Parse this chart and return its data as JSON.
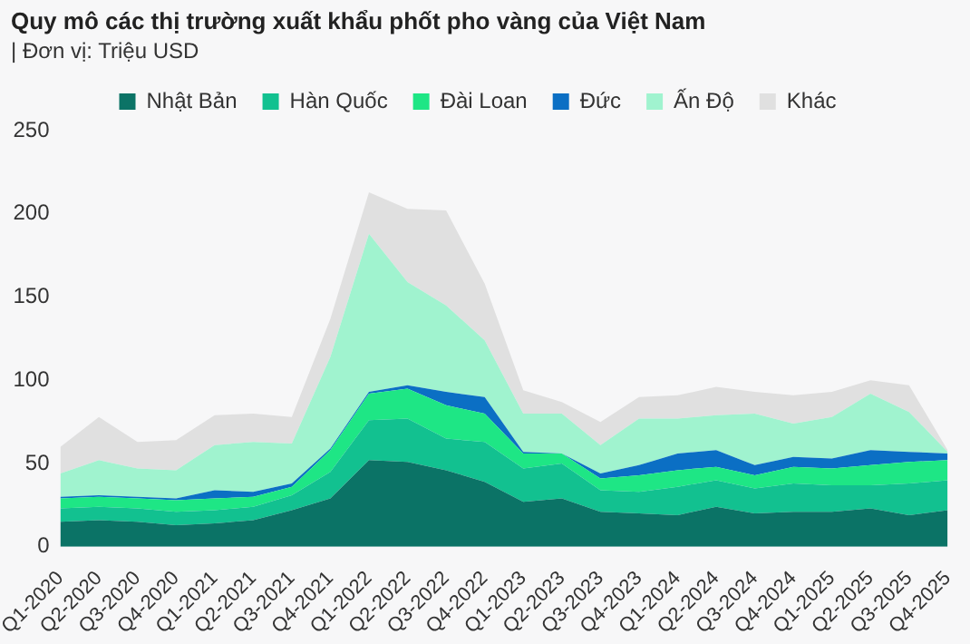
{
  "chart_data": {
    "type": "area",
    "title": "Quy mô các thị trường xuất khẩu phốt pho vàng của Việt Nam",
    "subtitle": "| Đơn vị: Triệu USD",
    "stacked": true,
    "legend": "top",
    "grid": false,
    "ylim": [
      0,
      250
    ],
    "yticks": [
      0,
      50,
      100,
      150,
      200,
      250
    ],
    "categories": [
      "Q1-2020",
      "Q2-2020",
      "Q3-2020",
      "Q4-2020",
      "Q1-2021",
      "Q2-2021",
      "Q3-2021",
      "Q4-2021",
      "Q1-2022",
      "Q2-2022",
      "Q3-2022",
      "Q4-2022",
      "Q1-2023",
      "Q2-2023",
      "Q3-2023",
      "Q4-2023",
      "Q1-2024",
      "Q2-2024",
      "Q3-2024",
      "Q4-2024",
      "Q1-2025",
      "Q2-2025",
      "Q3-2025",
      "Q4-2025"
    ],
    "series": [
      {
        "name": "Nhật Bản",
        "color": "#0b7366",
        "values": [
          15,
          16,
          15,
          13,
          14,
          16,
          22,
          29,
          52,
          51,
          46,
          39,
          27,
          29,
          21,
          20,
          19,
          24,
          20,
          21,
          21,
          23,
          19,
          22
        ]
      },
      {
        "name": "Hàn Quốc",
        "color": "#12c190",
        "values": [
          8,
          8,
          8,
          8,
          8,
          8,
          9,
          16,
          24,
          26,
          19,
          24,
          20,
          21,
          13,
          13,
          17,
          16,
          15,
          17,
          16,
          14,
          19,
          18
        ]
      },
      {
        "name": "Đài Loan",
        "color": "#1ee685",
        "values": [
          6,
          6,
          6,
          7,
          7,
          6,
          5,
          13,
          16,
          18,
          20,
          17,
          9,
          6,
          7,
          10,
          10,
          8,
          8,
          10,
          10,
          12,
          13,
          12
        ]
      },
      {
        "name": "Đức",
        "color": "#0b6fc4",
        "values": [
          1,
          1,
          1,
          1,
          5,
          3,
          2,
          1,
          1,
          2,
          8,
          10,
          1,
          0,
          3,
          6,
          10,
          10,
          6,
          6,
          6,
          9,
          6,
          4
        ]
      },
      {
        "name": "Ấn Độ",
        "color": "#a0f3cf",
        "values": [
          14,
          21,
          17,
          17,
          27,
          30,
          24,
          55,
          95,
          62,
          52,
          34,
          23,
          24,
          17,
          28,
          21,
          21,
          31,
          20,
          25,
          34,
          24,
          1
        ]
      },
      {
        "name": "Khác",
        "color": "#e0e0e0",
        "values": [
          16,
          26,
          16,
          18,
          18,
          17,
          16,
          23,
          25,
          44,
          57,
          34,
          14,
          7,
          14,
          13,
          14,
          17,
          13,
          17,
          15,
          8,
          16,
          1
        ]
      }
    ]
  }
}
